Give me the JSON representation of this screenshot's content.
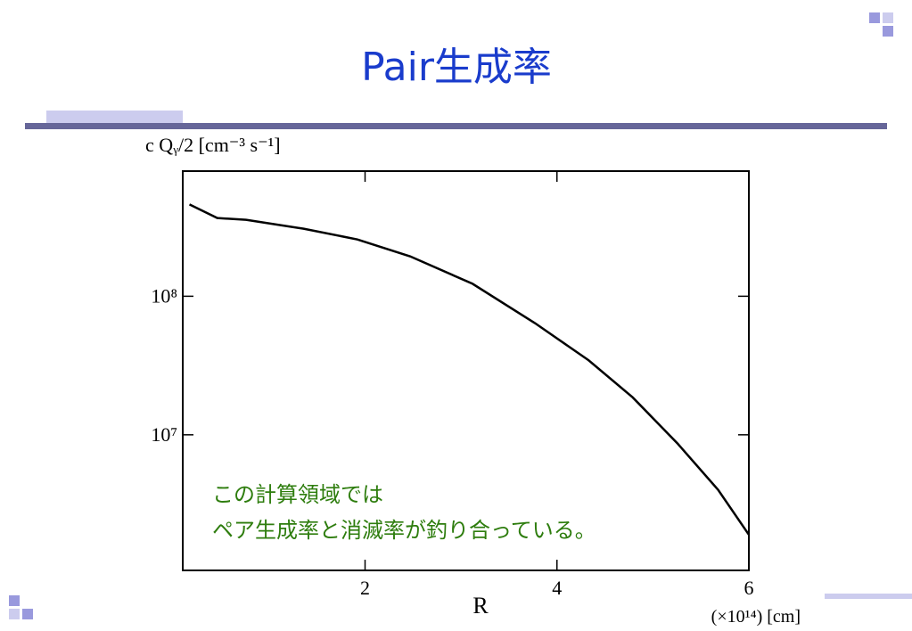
{
  "chart_data": {
    "type": "line",
    "title": "Pair生成率",
    "y_label": "c Qᵧ/2 [cm⁻³ s⁻¹]",
    "x_label": "R",
    "x_unit": "(×10¹⁴) [cm]",
    "annotation": [
      "この計算領域では",
      "ペア生成率と消滅率が釣り合っている。"
    ],
    "log_y": true,
    "xlim": [
      0.1,
      6
    ],
    "xticks": [
      2,
      4,
      6
    ],
    "ylim": [
      1050000,
      800000000
    ],
    "yticks": [
      {
        "value": 10000000,
        "label": "10⁷"
      },
      {
        "value": 100000000,
        "label": "10⁸"
      }
    ],
    "series": [
      {
        "color": "#000000",
        "x": [
          0.17,
          0.46,
          0.76,
          1.36,
          1.92,
          2.47,
          3.12,
          3.77,
          4.33,
          4.79,
          5.26,
          5.68,
          6.0
        ],
        "values": [
          460000000,
          367000000,
          356000000,
          307000000,
          257000000,
          194000000,
          123000000,
          64000000,
          34500000,
          18600000,
          8600000,
          4000000,
          1900000
        ]
      }
    ]
  }
}
